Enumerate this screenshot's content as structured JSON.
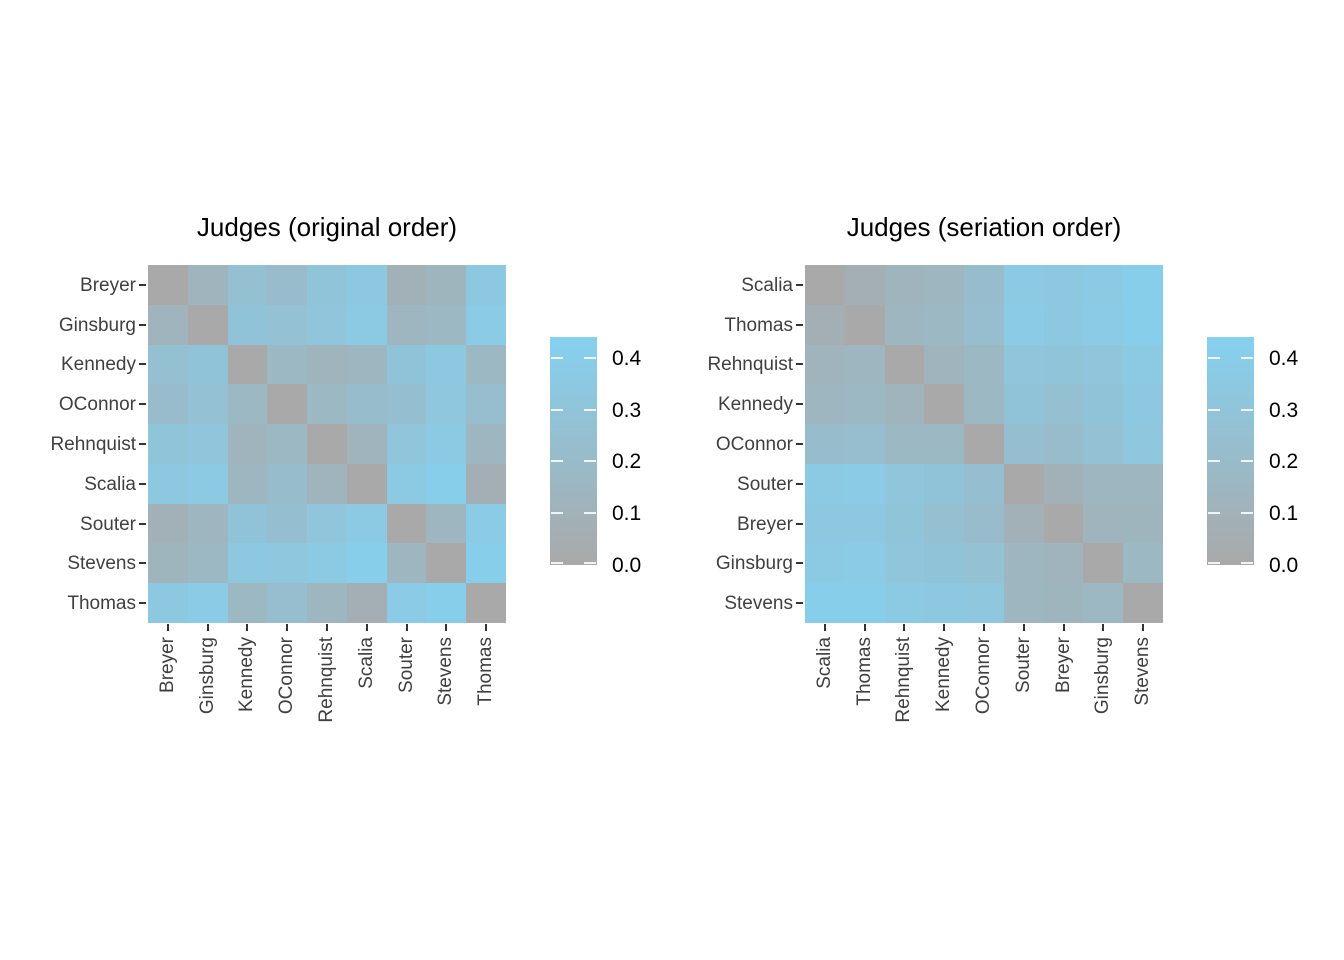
{
  "page": {
    "background": "#ffffff"
  },
  "styles": {
    "title_color": "#000000",
    "axis_label_color": "#404040",
    "axis_tick_color": "#333333",
    "legend_label_color": "#000000"
  },
  "chart_data": [
    {
      "type": "heatmap",
      "title": "Judges (original order)",
      "rows": [
        "Breyer",
        "Ginsburg",
        "Kennedy",
        "OConnor",
        "Rehnquist",
        "Scalia",
        "Souter",
        "Stevens",
        "Thomas"
      ],
      "cols": [
        "Breyer",
        "Ginsburg",
        "Kennedy",
        "OConnor",
        "Rehnquist",
        "Scalia",
        "Souter",
        "Stevens",
        "Thomas"
      ],
      "values": [
        [
          0.0,
          0.12,
          0.25,
          0.21,
          0.3,
          0.35,
          0.09,
          0.13,
          0.35
        ],
        [
          0.12,
          0.0,
          0.29,
          0.26,
          0.31,
          0.36,
          0.14,
          0.16,
          0.37
        ],
        [
          0.25,
          0.29,
          0.0,
          0.16,
          0.12,
          0.14,
          0.29,
          0.35,
          0.16
        ],
        [
          0.21,
          0.26,
          0.16,
          0.0,
          0.16,
          0.22,
          0.24,
          0.33,
          0.23
        ],
        [
          0.3,
          0.31,
          0.12,
          0.16,
          0.0,
          0.12,
          0.31,
          0.36,
          0.14
        ],
        [
          0.35,
          0.36,
          0.14,
          0.22,
          0.12,
          0.0,
          0.36,
          0.41,
          0.07
        ],
        [
          0.09,
          0.14,
          0.29,
          0.24,
          0.31,
          0.36,
          0.0,
          0.14,
          0.37
        ],
        [
          0.13,
          0.16,
          0.35,
          0.33,
          0.36,
          0.41,
          0.14,
          0.0,
          0.41
        ],
        [
          0.35,
          0.37,
          0.16,
          0.23,
          0.14,
          0.07,
          0.37,
          0.41,
          0.0
        ]
      ],
      "scale": {
        "domain": [
          0,
          0.44
        ],
        "low_color": "#a9a9a9",
        "high_color": "#85d1f0",
        "legend_ticks": [
          0.0,
          0.1,
          0.2,
          0.3,
          0.4
        ],
        "legend_position": "right"
      },
      "grid": false
    },
    {
      "type": "heatmap",
      "title": "Judges (seriation order)",
      "rows": [
        "Scalia",
        "Thomas",
        "Rehnquist",
        "Kennedy",
        "OConnor",
        "Souter",
        "Breyer",
        "Ginsburg",
        "Stevens"
      ],
      "cols": [
        "Scalia",
        "Thomas",
        "Rehnquist",
        "Kennedy",
        "OConnor",
        "Souter",
        "Breyer",
        "Ginsburg",
        "Stevens"
      ],
      "values": [
        [
          0.0,
          0.07,
          0.12,
          0.14,
          0.22,
          0.36,
          0.35,
          0.36,
          0.41
        ],
        [
          0.07,
          0.0,
          0.14,
          0.16,
          0.23,
          0.37,
          0.35,
          0.37,
          0.41
        ],
        [
          0.12,
          0.14,
          0.0,
          0.12,
          0.16,
          0.31,
          0.3,
          0.31,
          0.36
        ],
        [
          0.14,
          0.16,
          0.12,
          0.0,
          0.16,
          0.29,
          0.25,
          0.29,
          0.35
        ],
        [
          0.22,
          0.23,
          0.16,
          0.16,
          0.0,
          0.24,
          0.21,
          0.26,
          0.33
        ],
        [
          0.36,
          0.37,
          0.31,
          0.29,
          0.24,
          0.0,
          0.09,
          0.14,
          0.14
        ],
        [
          0.35,
          0.35,
          0.3,
          0.25,
          0.21,
          0.09,
          0.0,
          0.12,
          0.13
        ],
        [
          0.36,
          0.37,
          0.31,
          0.29,
          0.26,
          0.14,
          0.12,
          0.0,
          0.16
        ],
        [
          0.41,
          0.41,
          0.36,
          0.35,
          0.33,
          0.14,
          0.13,
          0.16,
          0.0
        ]
      ],
      "scale": {
        "domain": [
          0,
          0.44
        ],
        "low_color": "#a9a9a9",
        "high_color": "#85d1f0",
        "legend_ticks": [
          0.0,
          0.1,
          0.2,
          0.3,
          0.4
        ],
        "legend_position": "right"
      },
      "grid": false
    }
  ]
}
